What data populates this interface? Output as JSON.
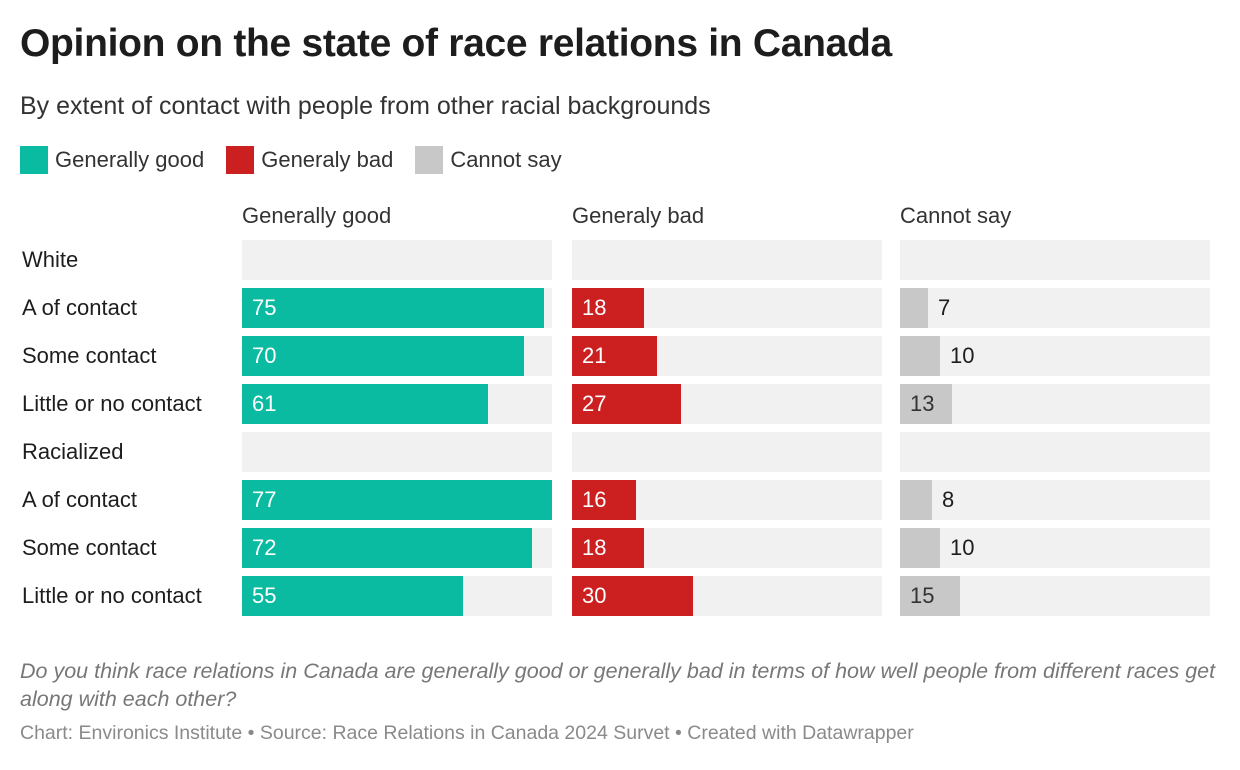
{
  "title": "Opinion on the state of race relations in Canada",
  "subtitle": "By extent of contact with people from other racial backgrounds",
  "legend": [
    {
      "label": "Generally good",
      "color": "#0bbba1"
    },
    {
      "label": "Generaly bad",
      "color": "#cc1f20"
    },
    {
      "label": "Cannot say",
      "color": "#c8c8c8"
    }
  ],
  "chart_data": {
    "type": "bar",
    "orientation": "horizontal",
    "layout": "small-multiples",
    "title": "Opinion on the state of race relations in Canada",
    "subtitle": "By extent of contact with people from other racial backgrounds",
    "categories": [
      "White",
      "A of contact",
      "Some contact",
      "Little or no contact",
      "Racialized",
      "A of contact",
      "Some contact",
      "Little or no contact"
    ],
    "group_header_rows": [
      0,
      4
    ],
    "xlim": [
      0,
      77
    ],
    "series": [
      {
        "name": "Generally good",
        "color": "#0bbba1",
        "values": [
          null,
          75,
          70,
          61,
          null,
          77,
          72,
          55
        ]
      },
      {
        "name": "Generaly bad",
        "color": "#cc1f20",
        "values": [
          null,
          18,
          21,
          27,
          null,
          16,
          18,
          30
        ]
      },
      {
        "name": "Cannot say",
        "color": "#c8c8c8",
        "values": [
          null,
          7,
          10,
          13,
          null,
          8,
          10,
          15
        ]
      }
    ],
    "legend": "top-left"
  },
  "note": "Do you think race relations in Canada are generally good or generally bad in terms of how well people from different races get along with each other?",
  "footer": "Chart: Environics Institute • Source: Race Relations in Canada 2024 Survet • Created with Datawrapper"
}
